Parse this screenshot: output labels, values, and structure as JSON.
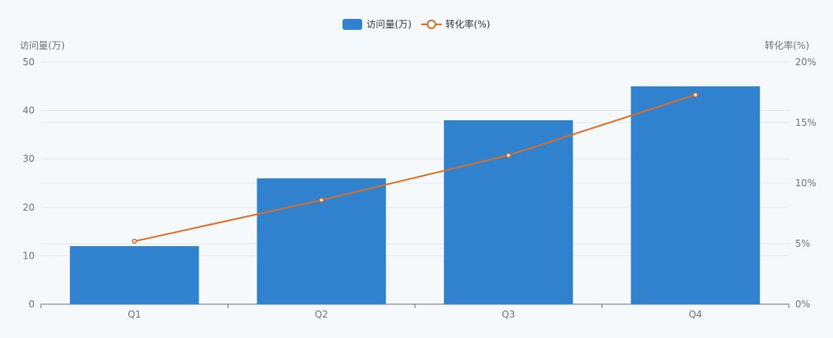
{
  "chart_data": {
    "type": "bar",
    "categories": [
      "Q1",
      "Q2",
      "Q3",
      "Q4"
    ],
    "series": [
      {
        "name": "访问量(万)",
        "type": "bar",
        "axis": "left",
        "values": [
          12,
          26,
          38,
          45
        ],
        "color": "#3182ce"
      },
      {
        "name": "转化率(%)",
        "type": "line",
        "axis": "right",
        "values": [
          5.2,
          8.6,
          12.3,
          17.3
        ],
        "color": "#dd6b20"
      }
    ],
    "ylabel_left": "访问量(万)",
    "ylabel_right": "转化率(%)",
    "ylim_left": [
      0,
      50
    ],
    "yticks_left": [
      "0",
      "10",
      "20",
      "30",
      "40",
      "50"
    ],
    "ylim_right": [
      0,
      20
    ],
    "yticks_right": [
      "0%",
      "5%",
      "10%",
      "15%",
      "20%"
    ],
    "grid": true,
    "legend_position": "top-center"
  }
}
